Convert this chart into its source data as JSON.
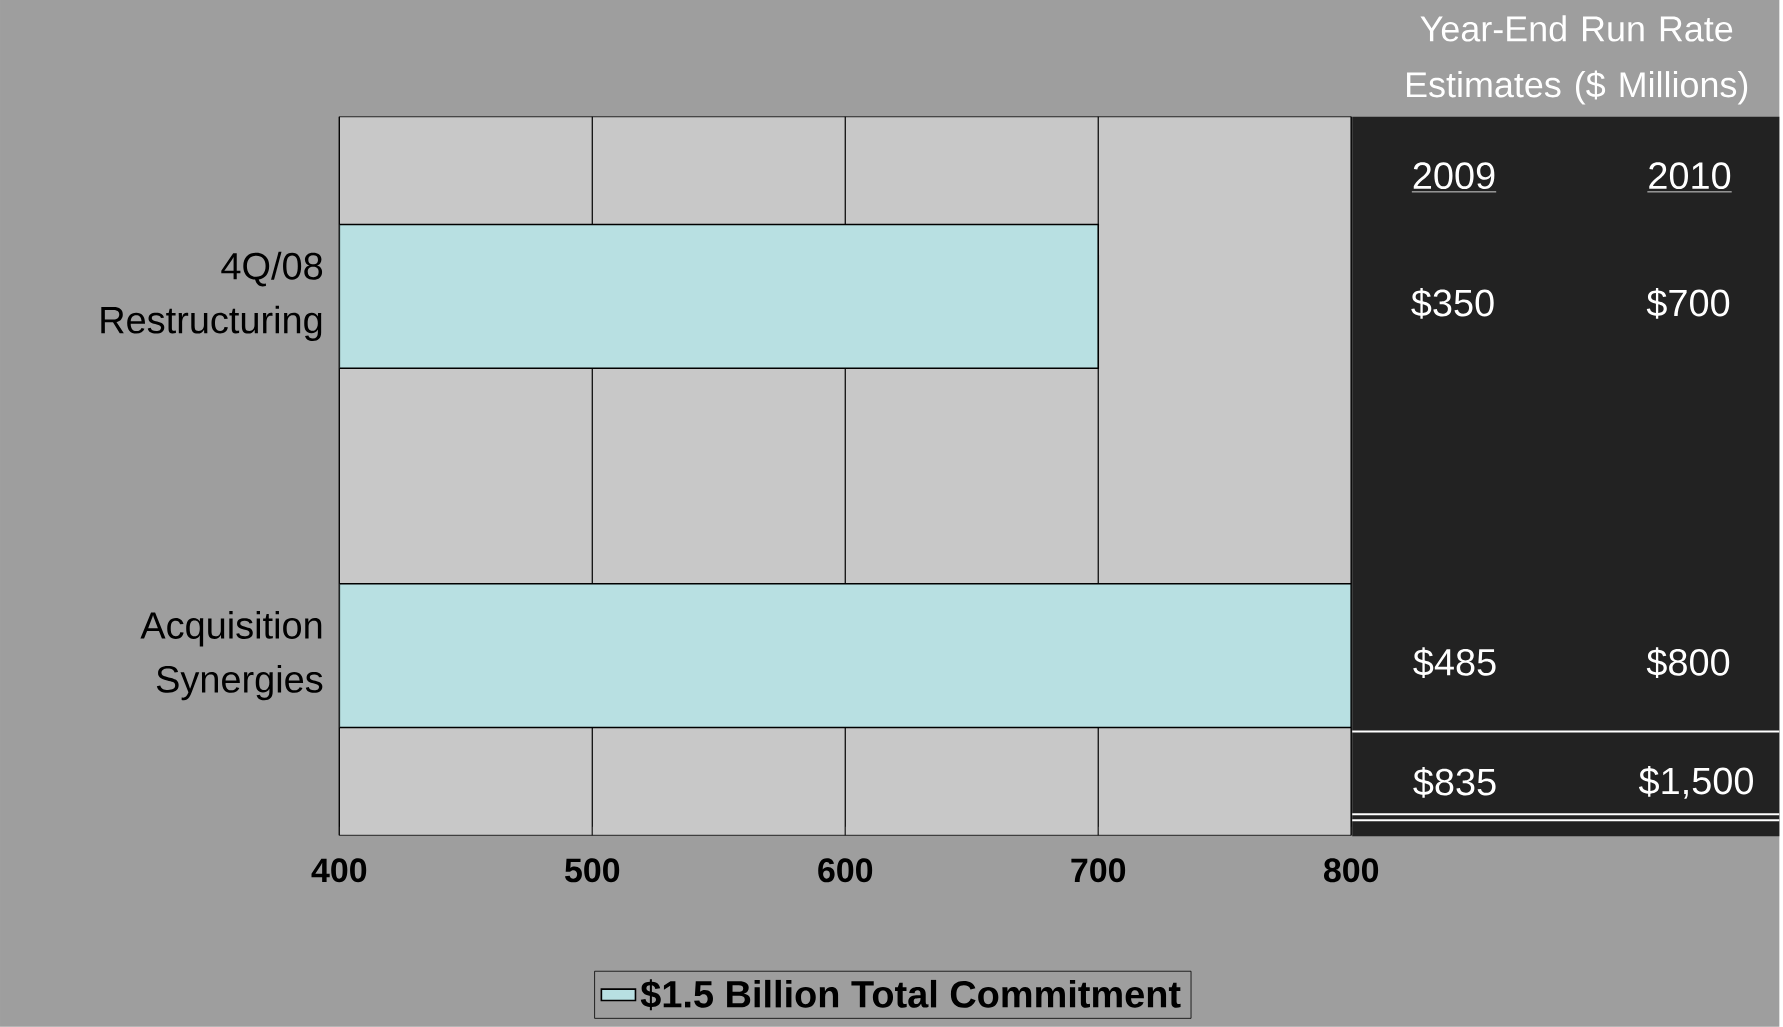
{
  "chart_data": {
    "type": "bar",
    "orientation": "horizontal",
    "categories": [
      "4Q/08 Restructuring",
      "Acquisition Synergies"
    ],
    "series": [
      {
        "name": "$1.5 Billion Total Commitment",
        "color": "#b8e0e2",
        "values": [
          700,
          800
        ]
      }
    ],
    "xlim": [
      400,
      800
    ],
    "xticks": [
      400,
      500,
      600,
      700,
      800
    ],
    "grid": "x",
    "legend": "bottom",
    "annotations": [
      "Year-End Run Rate Estimates ($ Millions)",
      "2009",
      "2010",
      "$350",
      "$700",
      "$485",
      "$800",
      "$835",
      "$1,500"
    ]
  }
}
